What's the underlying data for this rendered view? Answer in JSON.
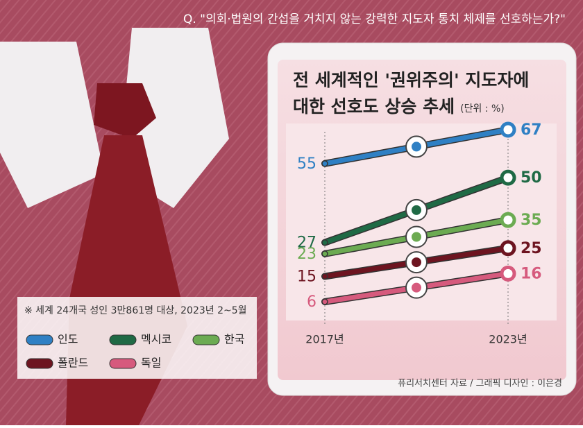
{
  "chart_data": {
    "type": "line",
    "question": "Q. \"의회·법원의 간섭을 거치지 않는 강력한 지도자 통치 체제를 선호하는가?\"",
    "title": [
      "전 세계적인 '권위주의' 지도자에",
      "대한 선호도 상승 추세"
    ],
    "unit": "(단위 : %)",
    "categories": [
      "2017년",
      "2023년"
    ],
    "series": [
      {
        "name": "인도",
        "color": "#2f80c4",
        "values": [
          55,
          67
        ]
      },
      {
        "name": "멕시코",
        "color": "#1f6a45",
        "values": [
          27,
          50
        ]
      },
      {
        "name": "한국",
        "color": "#6cab52",
        "values": [
          23,
          35
        ]
      },
      {
        "name": "폴란드",
        "color": "#6d1420",
        "values": [
          15,
          25
        ]
      },
      {
        "name": "독일",
        "color": "#d65a7d",
        "values": [
          6,
          16
        ]
      }
    ],
    "note": "※ 세계 24개국 성인 3만861명 대상, 2023년 2~5월",
    "source": "퓨리서치센터 자료 / 그래픽 디자인 : 이은경"
  }
}
